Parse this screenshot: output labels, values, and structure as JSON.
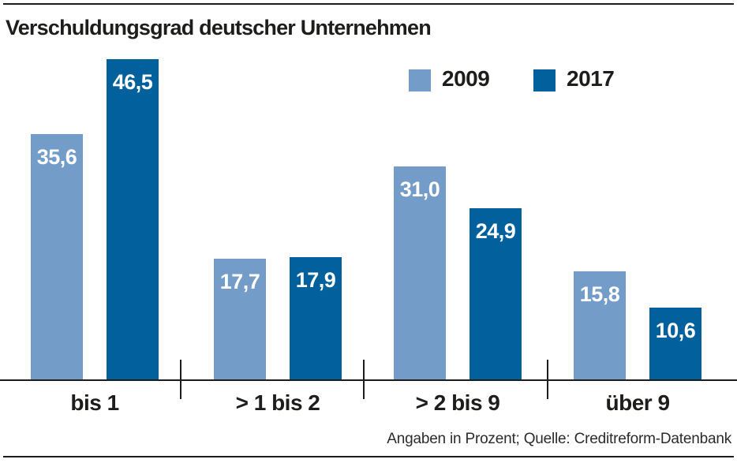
{
  "title": "Verschuldungsgrad deutscher Unternehmen",
  "source_note": "Angaben in Prozent; Quelle: Creditreform-Datenbank",
  "colors": {
    "series_2009": "#739cc9",
    "series_2017": "#02609d",
    "text": "#1d1d1b",
    "background": "#ffffff"
  },
  "legend": {
    "items": [
      {
        "label": "2009",
        "color": "#739cc9"
      },
      {
        "label": "2017",
        "color": "#02609d"
      }
    ]
  },
  "chart_data": {
    "type": "bar",
    "title": "Verschuldungsgrad deutscher Unternehmen",
    "unit": "Prozent",
    "categories": [
      "bis 1",
      "> 1 bis 2",
      "> 2 bis 9",
      "über 9"
    ],
    "series": [
      {
        "name": "2009",
        "color": "#739cc9",
        "values": [
          35.6,
          17.7,
          31.0,
          15.8
        ],
        "labels": [
          "35,6",
          "17,7",
          "31,0",
          "15,8"
        ]
      },
      {
        "name": "2017",
        "color": "#02609d",
        "values": [
          46.5,
          17.9,
          24.9,
          10.6
        ],
        "labels": [
          "46,5",
          "17,9",
          "24,9",
          "10,6"
        ]
      }
    ],
    "ylim": [
      0,
      50
    ],
    "grid": false,
    "legend_position": "top-right",
    "value_labels_inside_bars": true,
    "source": "Angaben in Prozent; Quelle: Creditreform-Datenbank"
  }
}
